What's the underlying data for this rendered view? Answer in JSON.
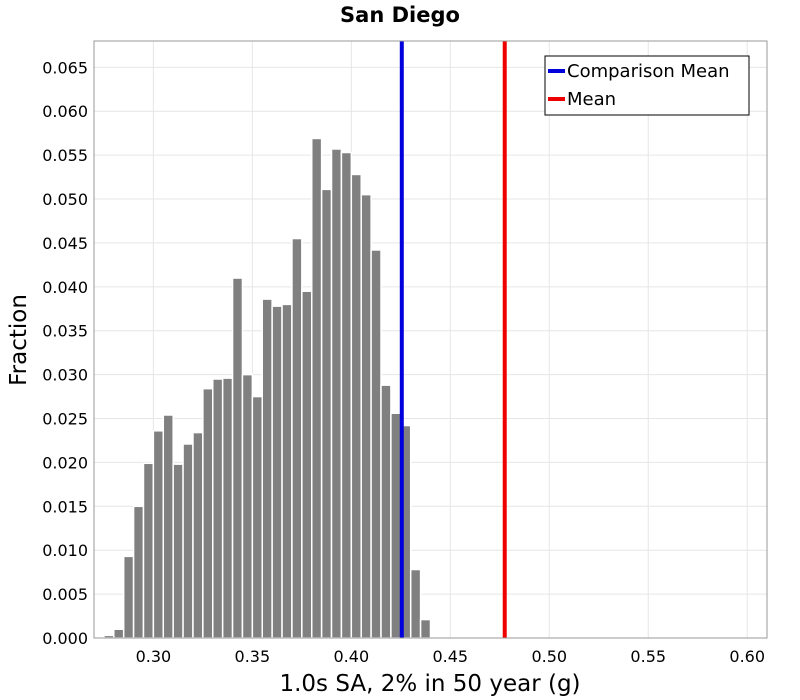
{
  "chart_data": {
    "type": "bar",
    "title": "San Diego",
    "xlabel": "1.0s SA, 2% in 50 year (g)",
    "ylabel": "Fraction",
    "xlim": [
      0.27,
      0.61
    ],
    "ylim": [
      0,
      0.068
    ],
    "xticks": [
      "0.30",
      "0.35",
      "0.40",
      "0.45",
      "0.50",
      "0.55",
      "0.60"
    ],
    "yticks": [
      "0.000",
      "0.005",
      "0.010",
      "0.015",
      "0.020",
      "0.025",
      "0.030",
      "0.035",
      "0.040",
      "0.045",
      "0.050",
      "0.055",
      "0.060",
      "0.065"
    ],
    "grid": true,
    "bin_start": 0.27,
    "bin_width": 0.005,
    "values": [
      0.0,
      0.0003,
      0.001,
      0.0093,
      0.015,
      0.0199,
      0.0236,
      0.0254,
      0.0198,
      0.0221,
      0.0234,
      0.0284,
      0.0295,
      0.0296,
      0.041,
      0.03,
      0.0275,
      0.0386,
      0.0378,
      0.038,
      0.0455,
      0.0395,
      0.0569,
      0.0511,
      0.0557,
      0.0553,
      0.0528,
      0.0505,
      0.0442,
      0.0288,
      0.0256,
      0.0242,
      0.0078,
      0.0021
    ],
    "lines": [
      {
        "name": "Comparison Mean",
        "x": 0.4255,
        "color": "#0000dd"
      },
      {
        "name": "Mean",
        "x": 0.4775,
        "color": "#ee0000"
      }
    ],
    "legend_position": "top-right",
    "bar_color": "#808080"
  }
}
